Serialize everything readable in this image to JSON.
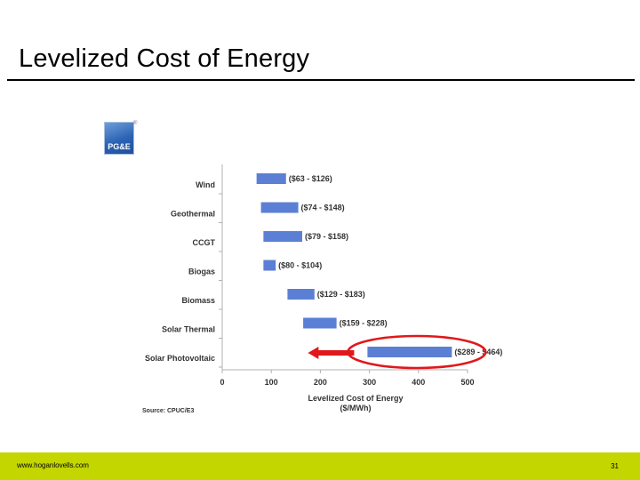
{
  "slide": {
    "title": "Levelized Cost of Energy",
    "logo_text": "PG&E",
    "logo_mark": "®"
  },
  "chart_data": {
    "type": "bar",
    "orientation": "horizontal",
    "chart_kind": "range",
    "categories": [
      "Wind",
      "Geothermal",
      "CCGT",
      "Biogas",
      "Biomass",
      "Solar Thermal",
      "Solar Photovoltaic"
    ],
    "ranges": [
      [
        70,
        130
      ],
      [
        79,
        155
      ],
      [
        84,
        163
      ],
      [
        84,
        109
      ],
      [
        133,
        188
      ],
      [
        165,
        233
      ],
      [
        296,
        468
      ]
    ],
    "range_labels": [
      "($63 - $126)",
      "($74 - $148)",
      "($79 - $158)",
      "($80 - $104)",
      "($129 - $183)",
      "($159 - $228)",
      "($289 - $464)"
    ],
    "xlabel": "Levelized Cost of Energy",
    "xlabel_unit": "($/MWh)",
    "xlim": [
      0,
      500
    ],
    "xticks": [
      0,
      100,
      200,
      300,
      400,
      500
    ],
    "grid": false,
    "legend": "none",
    "highlight": {
      "category": "Solar Photovoltaic",
      "marker": "red ellipse with left-pointing arrow"
    },
    "colors": {
      "bar": "#5b7fd4",
      "highlight": "#e0181b",
      "axis": "#b0b0b0",
      "text": "#333333"
    },
    "source": "Source: CPUC/E3"
  },
  "footer": {
    "url": "www.hoganlovells.com",
    "page": "31",
    "color": "#c4d600"
  }
}
